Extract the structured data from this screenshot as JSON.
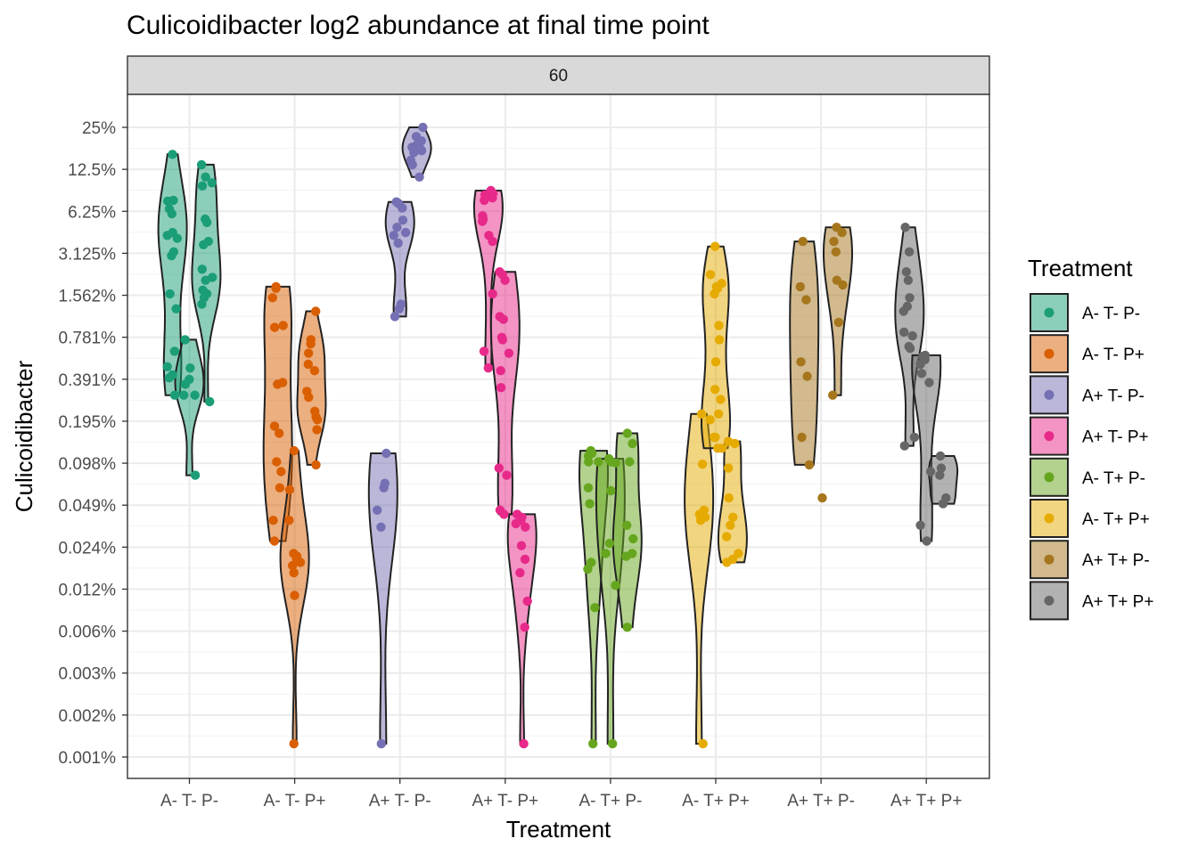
{
  "chart_data": {
    "type": "violin",
    "title": "Culicoidibacter log2 abundance at final time point",
    "facet_label": "60",
    "xlabel": "Treatment",
    "ylabel": "Culicoidibacter",
    "y_scale": "log2",
    "y_ticks": [
      {
        "value": 25,
        "label": "25%"
      },
      {
        "value": 12.5,
        "label": "12.5%"
      },
      {
        "value": 6.25,
        "label": "6.25%"
      },
      {
        "value": 3.125,
        "label": "3.125%"
      },
      {
        "value": 1.5625,
        "label": "1.562%"
      },
      {
        "value": 0.78125,
        "label": "0.781%"
      },
      {
        "value": 0.390625,
        "label": "0.391%"
      },
      {
        "value": 0.1953125,
        "label": "0.195%"
      },
      {
        "value": 0.09765625,
        "label": "0.098%"
      },
      {
        "value": 0.048828125,
        "label": "0.049%"
      },
      {
        "value": 0.0244140625,
        "label": "0.024%"
      },
      {
        "value": 0.01220703125,
        "label": "0.012%"
      },
      {
        "value": 0.006103515625,
        "label": "0.006%"
      },
      {
        "value": 0.0030517578125,
        "label": "0.003%"
      },
      {
        "value": 0.00152587890625,
        "label": "0.002%"
      },
      {
        "value": 0.000762939453125,
        "label": "0.001%"
      }
    ],
    "grid": true,
    "legend": {
      "title": "Treatment",
      "position": "right",
      "entries": [
        "A- T- P-",
        "A- T- P+",
        "A+ T- P-",
        "A+ T- P+",
        "A- T+ P-",
        "A- T+ P+",
        "A+ T+ P-",
        "A+ T+ P+"
      ]
    },
    "categories": [
      "A- T- P-",
      "A- T- P+",
      "A+ T- P-",
      "A+ T- P+",
      "A- T+ P-",
      "A- T+ P+",
      "A+ T+ P-",
      "A+ T+ P+"
    ],
    "series": [
      {
        "name": "A- T- P-",
        "color": "#1b9e77",
        "violins": [
          {
            "offset": -0.16,
            "values": [
              16,
              7.5,
              7.4,
              6.5,
              6,
              4.4,
              4.2,
              4,
              3.2,
              3,
              1.6,
              1.25,
              0.62,
              0.48,
              0.42,
              0.4,
              0.3
            ]
          },
          {
            "offset": 0.0,
            "values": [
              0.75,
              0.47,
              0.39,
              0.36,
              0.3,
              0.3,
              0.08
            ]
          },
          {
            "offset": 0.16,
            "values": [
              13.5,
              11,
              10,
              9.5,
              5.5,
              5.2,
              3.8,
              3.6,
              2.4,
              2.1,
              2,
              1.7,
              1.6,
              1.5,
              1.35,
              0.27
            ]
          }
        ]
      },
      {
        "name": "A- T- P+",
        "color": "#d95f02",
        "violins": [
          {
            "offset": -0.16,
            "values": [
              1.8,
              1.75,
              1.5,
              0.95,
              0.92,
              0.37,
              0.36,
              0.18,
              0.16,
              0.1,
              0.085,
              0.065,
              0.038,
              0.027
            ]
          },
          {
            "offset": 0.0,
            "values": [
              0.12,
              0.063,
              0.038,
              0.022,
              0.021,
              0.02,
              0.019,
              0.018,
              0.016,
              0.011,
              0.00095
            ]
          },
          {
            "offset": 0.16,
            "values": [
              1.2,
              0.75,
              0.7,
              0.6,
              0.5,
              0.45,
              0.32,
              0.29,
              0.23,
              0.21,
              0.2,
              0.17,
              0.095
            ]
          }
        ]
      },
      {
        "name": "A+ T- P-",
        "color": "#7570b3",
        "violins": [
          {
            "offset": -0.16,
            "values": [
              0.115,
              0.07,
              0.065,
              0.045,
              0.034,
              0.00095
            ]
          },
          {
            "offset": 0.0,
            "values": [
              7.3,
              7.1,
              6.6,
              5.4,
              4.8,
              4.4,
              4.2,
              3.7,
              1.35,
              1.25,
              1.1
            ]
          },
          {
            "offset": 0.16,
            "values": [
              25,
              21.5,
              20,
              19,
              18.5,
              18,
              17.5,
              17,
              16.5,
              14.5,
              13.5,
              11
            ]
          }
        ]
      },
      {
        "name": "A+ T- P+",
        "color": "#e7298a",
        "violins": [
          {
            "offset": -0.16,
            "values": [
              8.8,
              8.6,
              8.4,
              8.2,
              7.8,
              7.5,
              5.8,
              5.5,
              5.3,
              4.2,
              3.8,
              1.6,
              0.62,
              0.47
            ]
          },
          {
            "offset": 0.0,
            "values": [
              2.3,
              2.2,
              2,
              1.1,
              1.05,
              0.78,
              0.75,
              0.6,
              0.45,
              0.34,
              0.09,
              0.08,
              0.045,
              0.042
            ]
          },
          {
            "offset": 0.16,
            "values": [
              0.042,
              0.04,
              0.038,
              0.036,
              0.034,
              0.025,
              0.02,
              0.016,
              0.01,
              0.0065,
              0.00095
            ]
          }
        ]
      },
      {
        "name": "A- T+ P-",
        "color": "#66a61e",
        "violins": [
          {
            "offset": -0.16,
            "values": [
              0.12,
              0.115,
              0.11,
              0.1,
              0.1,
              0.065,
              0.05,
              0.019,
              0.017,
              0.009,
              0.00095
            ]
          },
          {
            "offset": 0.0,
            "values": [
              0.105,
              0.1,
              0.098,
              0.062,
              0.026,
              0.022,
              0.013,
              0.00095
            ]
          },
          {
            "offset": 0.16,
            "values": [
              0.16,
              0.135,
              0.1,
              0.035,
              0.028,
              0.022,
              0.021,
              0.0065
            ]
          }
        ]
      },
      {
        "name": "A- T+ P+",
        "color": "#e6ab02",
        "violins": [
          {
            "offset": -0.16,
            "values": [
              0.22,
              0.096,
              0.045,
              0.042,
              0.04,
              0.038,
              0.00095
            ]
          },
          {
            "offset": 0.0,
            "values": [
              3.5,
              2.2,
              1.9,
              1.8,
              1.75,
              1.6,
              0.95,
              0.75,
              0.52,
              0.33,
              0.28,
              0.22,
              0.2,
              0.15,
              0.15,
              0.125,
              0.125
            ]
          },
          {
            "offset": 0.16,
            "values": [
              0.14,
              0.135,
              0.09,
              0.055,
              0.04,
              0.035,
              0.029,
              0.022,
              0.02,
              0.019
            ]
          }
        ]
      },
      {
        "name": "A+ T+ P-",
        "color": "#a6761d",
        "violins": [
          {
            "offset": -0.16,
            "values": [
              3.8,
              1.8,
              1.45,
              0.52,
              0.41,
              0.15,
              0.095
            ]
          },
          {
            "offset": 0.0,
            "values": [
              0.055
            ]
          },
          {
            "offset": 0.16,
            "values": [
              4.8,
              4.4,
              3.8,
              3.2,
              2,
              1.85,
              1,
              0.3
            ]
          }
        ]
      },
      {
        "name": "A+ T+ P+",
        "color": "#666666",
        "violins": [
          {
            "offset": -0.16,
            "values": [
              4.8,
              3.2,
              2.3,
              2,
              1.5,
              1.3,
              1.2,
              0.85,
              0.8,
              0.67,
              0.65,
              0.15,
              0.13
            ]
          },
          {
            "offset": 0.0,
            "values": [
              0.58,
              0.57,
              0.54,
              0.5,
              0.43,
              0.37,
              0.085,
              0.035,
              0.027
            ]
          },
          {
            "offset": 0.16,
            "values": [
              0.11,
              0.09,
              0.08,
              0.055,
              0.05
            ]
          }
        ]
      }
    ]
  }
}
